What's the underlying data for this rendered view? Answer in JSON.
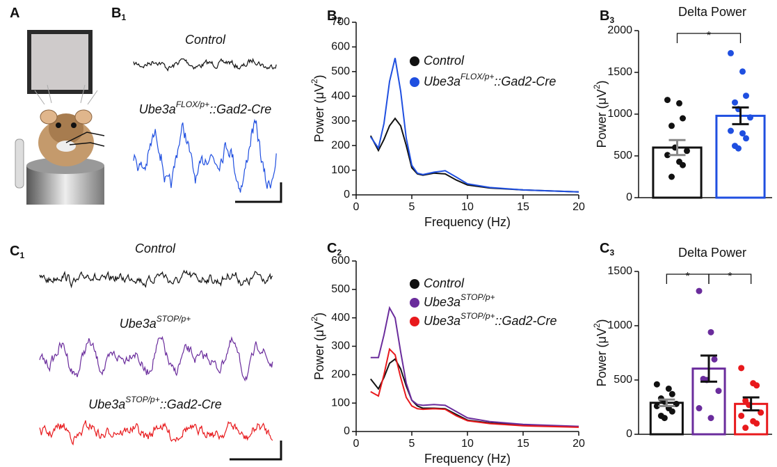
{
  "panel_labels": [
    {
      "letter": "A"
    },
    {
      "letter": "B",
      "sub": "1"
    },
    {
      "letter": "B",
      "sub": "2"
    },
    {
      "letter": "B",
      "sub": "3"
    },
    {
      "letter": "C",
      "sub": "1"
    },
    {
      "letter": "C",
      "sub": "2"
    },
    {
      "letter": "C",
      "sub": "3"
    }
  ],
  "trace_labels": [
    {
      "base": "Control"
    },
    {
      "base": "Ube3a",
      "sup": "FLOX/p+",
      "suffix": "::Gad2-Cre"
    },
    {
      "base": "Control"
    },
    {
      "base": "Ube3a",
      "sup": "STOP/p+"
    },
    {
      "base": "Ube3a",
      "sup": "STOP/p+",
      "suffix": "::Gad2-Cre"
    }
  ],
  "chart_data": [
    {
      "type": "line",
      "x_label": "Frequency (Hz)",
      "y_label": {
        "base": "Power (μV",
        "sup": "2",
        "suffix": ")"
      },
      "x": [
        1.3,
        2,
        2.5,
        3,
        3.5,
        4,
        4.5,
        5,
        5.5,
        6,
        7,
        8,
        9,
        10,
        12,
        15,
        20
      ],
      "xlim": [
        0,
        20
      ],
      "xticks": [
        0,
        5,
        10,
        15,
        20
      ],
      "ylim": [
        0,
        700
      ],
      "yticks": [
        0,
        100,
        200,
        300,
        400,
        500,
        600,
        700
      ],
      "series": [
        {
          "name": {
            "base": "Control"
          },
          "color": "#111111",
          "values": [
            240,
            180,
            225,
            280,
            310,
            280,
            200,
            110,
            85,
            80,
            88,
            85,
            60,
            40,
            28,
            20,
            12
          ]
        },
        {
          "name": {
            "base": "Ube3a",
            "sup": "FLOX/p+",
            "suffix": "::Gad2-Cre"
          },
          "color": "#1f4fe0",
          "values": [
            235,
            190,
            290,
            460,
            555,
            420,
            230,
            120,
            88,
            82,
            92,
            98,
            72,
            45,
            30,
            20,
            12
          ]
        }
      ]
    },
    {
      "type": "bar",
      "title": "Delta Power",
      "y_label": {
        "base": "Power (μV",
        "sup": "2",
        "suffix": ")"
      },
      "ylim": [
        0,
        2000
      ],
      "yticks": [
        0,
        500,
        1000,
        1500,
        2000
      ],
      "values": [
        600,
        980
      ],
      "errors": [
        90,
        100
      ],
      "colors": [
        "#111111",
        "#1f4fe0"
      ],
      "error_colors": [
        "#888888",
        "#111111"
      ],
      "points": [
        [
          1170,
          1130,
          950,
          860,
          600,
          560,
          510,
          430,
          390,
          250
        ],
        [
          1730,
          1510,
          1220,
          1140,
          1060,
          960,
          800,
          770,
          710,
          620,
          590
        ]
      ],
      "annotations": [
        "*"
      ]
    },
    {
      "type": "line",
      "x_label": "Frequency (Hz)",
      "y_label": {
        "base": "Power (μV",
        "sup": "2",
        "suffix": ")"
      },
      "x": [
        1.3,
        2,
        2.5,
        3,
        3.5,
        4,
        4.5,
        5,
        5.5,
        6,
        7,
        8,
        9,
        10,
        12,
        15,
        20
      ],
      "xlim": [
        0,
        20
      ],
      "xticks": [
        0,
        5,
        10,
        15,
        20
      ],
      "ylim": [
        0,
        600
      ],
      "yticks": [
        0,
        100,
        200,
        300,
        400,
        500,
        600
      ],
      "series": [
        {
          "name": {
            "base": "Control"
          },
          "color": "#111111",
          "values": [
            185,
            150,
            190,
            240,
            255,
            220,
            160,
            110,
            90,
            82,
            82,
            80,
            60,
            40,
            30,
            22,
            17
          ]
        },
        {
          "name": {
            "base": "Ube3a",
            "sup": "STOP/p+"
          },
          "color": "#6a2c9c",
          "values": [
            260,
            260,
            340,
            435,
            400,
            280,
            170,
            110,
            95,
            92,
            95,
            92,
            70,
            48,
            35,
            25,
            18
          ]
        },
        {
          "name": {
            "base": "Ube3a",
            "sup": "STOP/p+",
            "suffix": "::Gad2-Cre"
          },
          "color": "#e8191c",
          "values": [
            140,
            125,
            200,
            290,
            270,
            190,
            120,
            90,
            80,
            78,
            80,
            78,
            55,
            38,
            28,
            20,
            15
          ]
        }
      ]
    },
    {
      "type": "bar",
      "title": "Delta Power",
      "y_label": {
        "base": "Power (μV",
        "sup": "2",
        "suffix": ")"
      },
      "ylim": [
        0,
        1500
      ],
      "yticks": [
        0,
        500,
        1000,
        1500
      ],
      "values": [
        290,
        605,
        280
      ],
      "errors": [
        30,
        120,
        60
      ],
      "colors": [
        "#111111",
        "#6a2c9c",
        "#e8191c"
      ],
      "error_colors": [
        "#888888",
        "#111111",
        "#111111"
      ],
      "points": [
        [
          460,
          420,
          370,
          330,
          300,
          280,
          260,
          240,
          210,
          170,
          150
        ],
        [
          1320,
          940,
          690,
          510,
          500,
          400,
          240,
          150
        ],
        [
          610,
          470,
          450,
          310,
          270,
          200,
          170,
          120,
          100,
          60
        ]
      ],
      "annotations": [
        "*",
        "*"
      ]
    }
  ]
}
